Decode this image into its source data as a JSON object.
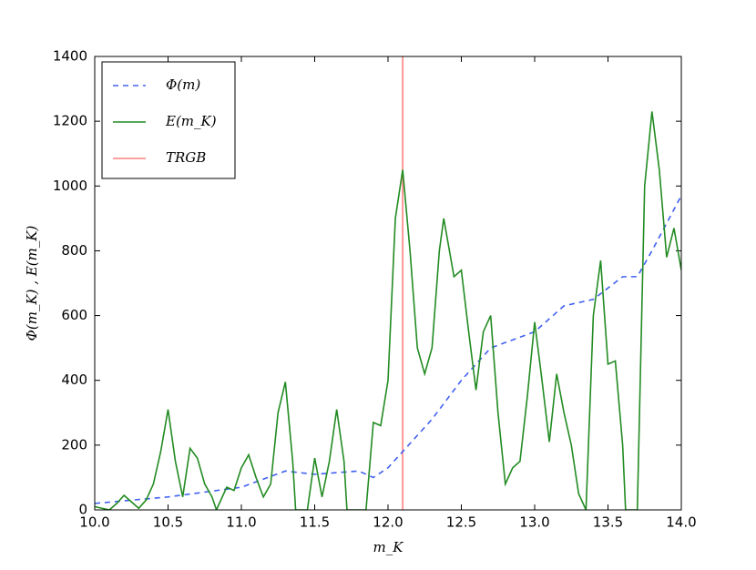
{
  "chart_data": {
    "type": "line",
    "xlabel": "m_K",
    "ylabel": "Φ(m_K) , E(m_K)",
    "xlim": [
      10,
      14
    ],
    "ylim": [
      0,
      1400
    ],
    "xticks": [
      {
        "value": 10,
        "label": "10.0"
      },
      10.5,
      {
        "value": 11,
        "label": "11.0"
      },
      11.5,
      {
        "value": 12,
        "label": "12.0"
      },
      12.5,
      {
        "value": 13,
        "label": "13.0"
      },
      13.5,
      {
        "value": 14,
        "label": "14.0"
      }
    ],
    "yticks": [
      0,
      200,
      400,
      600,
      800,
      1000,
      1200,
      1400
    ],
    "legend": "upper left",
    "series": [
      {
        "name": "Φ(m)",
        "color": "#4060f0",
        "linestyle": "dashed",
        "x": [
          10.0,
          10.5,
          11.0,
          11.3,
          11.5,
          11.8,
          11.9,
          12.0,
          12.1,
          12.3,
          12.5,
          12.7,
          13.0,
          13.2,
          13.4,
          13.6,
          13.7,
          13.8,
          14.0
        ],
        "values": [
          20,
          40,
          70,
          120,
          110,
          120,
          100,
          130,
          180,
          280,
          400,
          500,
          550,
          630,
          650,
          720,
          720,
          800,
          970
        ]
      },
      {
        "name": "E(m_K)",
        "color": "#228b22",
        "linestyle": "solid",
        "x": [
          10.0,
          10.05,
          10.1,
          10.15,
          10.2,
          10.25,
          10.3,
          10.35,
          10.4,
          10.45,
          10.5,
          10.55,
          10.6,
          10.65,
          10.7,
          10.75,
          10.8,
          10.83,
          10.9,
          10.95,
          11.0,
          11.05,
          11.1,
          11.15,
          11.2,
          11.25,
          11.3,
          11.35,
          11.37,
          11.45,
          11.5,
          11.55,
          11.6,
          11.65,
          11.7,
          11.72,
          11.85,
          11.9,
          11.95,
          12.0,
          12.05,
          12.1,
          12.15,
          12.2,
          12.25,
          12.3,
          12.35,
          12.38,
          12.45,
          12.5,
          12.55,
          12.6,
          12.65,
          12.7,
          12.75,
          12.8,
          12.85,
          12.9,
          12.95,
          13.0,
          13.05,
          13.1,
          13.15,
          13.2,
          13.25,
          13.3,
          13.35,
          13.4,
          13.45,
          13.5,
          13.55,
          13.6,
          13.62,
          13.7,
          13.75,
          13.8,
          13.85,
          13.9,
          13.95,
          14.0
        ],
        "values": [
          10,
          5,
          0,
          20,
          45,
          25,
          5,
          30,
          80,
          180,
          310,
          150,
          40,
          190,
          160,
          80,
          40,
          0,
          70,
          60,
          130,
          170,
          100,
          40,
          80,
          300,
          395,
          150,
          0,
          0,
          160,
          40,
          150,
          310,
          150,
          0,
          0,
          270,
          260,
          400,
          900,
          1050,
          800,
          500,
          420,
          500,
          800,
          900,
          720,
          740,
          550,
          370,
          550,
          600,
          300,
          80,
          130,
          150,
          350,
          580,
          400,
          210,
          420,
          300,
          200,
          50,
          0,
          600,
          770,
          450,
          460,
          200,
          0,
          0,
          1000,
          1230,
          1050,
          780,
          870,
          740
        ]
      }
    ],
    "vlines": [
      {
        "name": "TRGB",
        "x": 12.1,
        "color": "#ff8080"
      }
    ]
  }
}
